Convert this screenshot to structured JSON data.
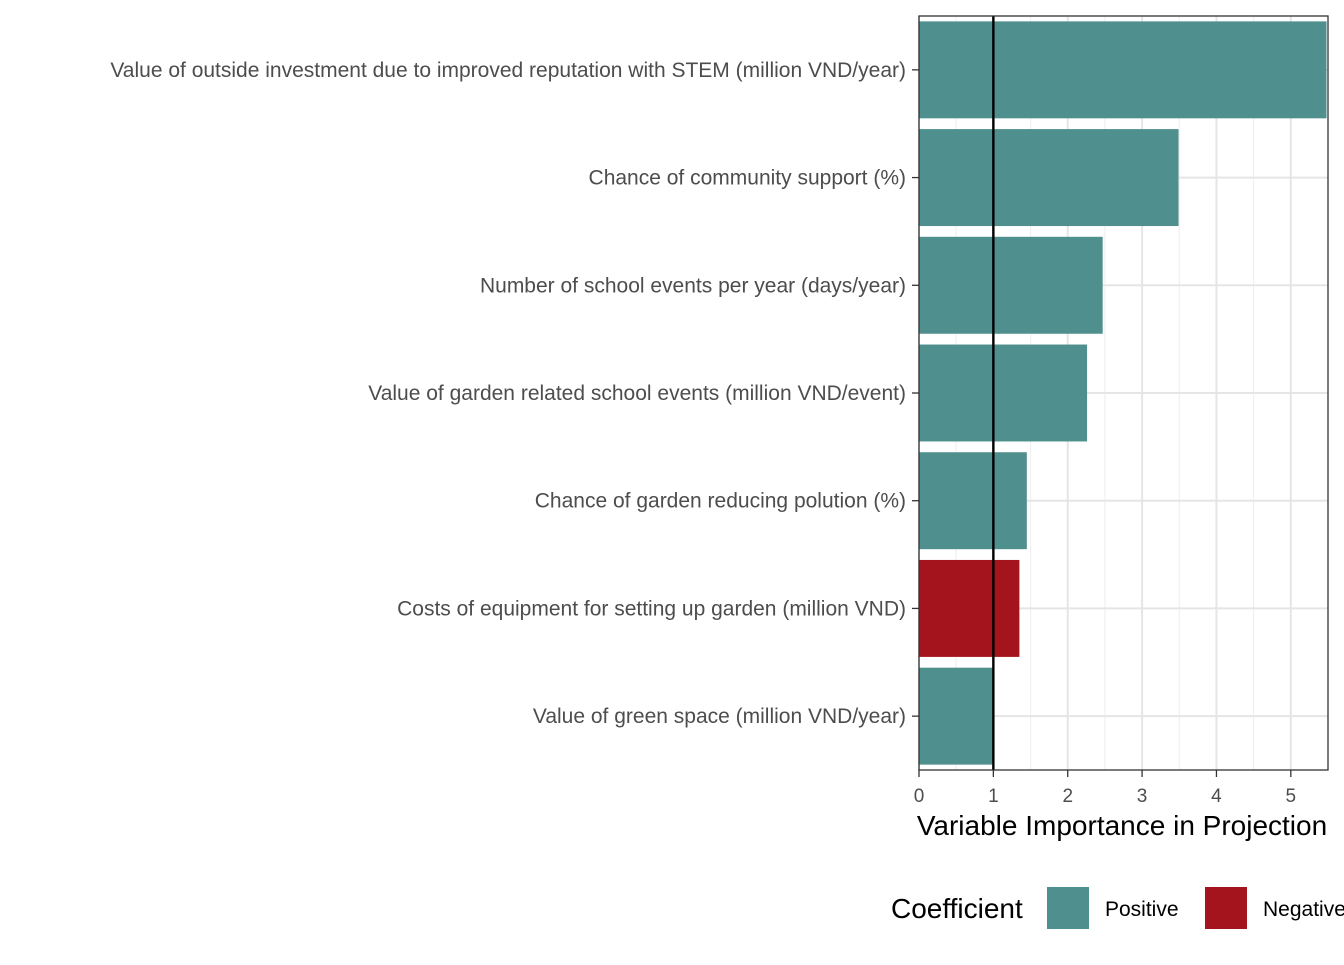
{
  "chart_data": {
    "type": "bar",
    "orientation": "horizontal",
    "categories": [
      "Value of outside investment due to improved reputation with STEM (million VND/year)",
      "Chance of community support (%)",
      "Number of school events per year (days/year)",
      "Value of garden related school events (million VND/event)",
      "Chance of garden reducing polution (%)",
      "Costs of equipment for setting up garden (million VND)",
      "Value of green space (million VND/year)"
    ],
    "values": [
      5.48,
      3.49,
      2.47,
      2.26,
      1.45,
      1.35,
      1.0
    ],
    "coefficient": [
      "Positive",
      "Positive",
      "Positive",
      "Positive",
      "Positive",
      "Negative",
      "Positive"
    ],
    "xlabel": "Variable Importance in Projection",
    "ylabel": "",
    "xlim": [
      0,
      5.5
    ],
    "xticks": [
      "0",
      "1",
      "2",
      "3",
      "4",
      "5"
    ],
    "reference_line": 1,
    "grid": true,
    "legend": {
      "title": "Coefficient",
      "position": "bottom",
      "items": [
        {
          "label": "Positive",
          "color": "#4f8f8d"
        },
        {
          "label": "Negative",
          "color": "#a3141d"
        }
      ]
    },
    "colors": {
      "Positive": "#4f8f8d",
      "Negative": "#a3141d",
      "grid": "#e5e5e5",
      "reference": "#000000"
    }
  }
}
